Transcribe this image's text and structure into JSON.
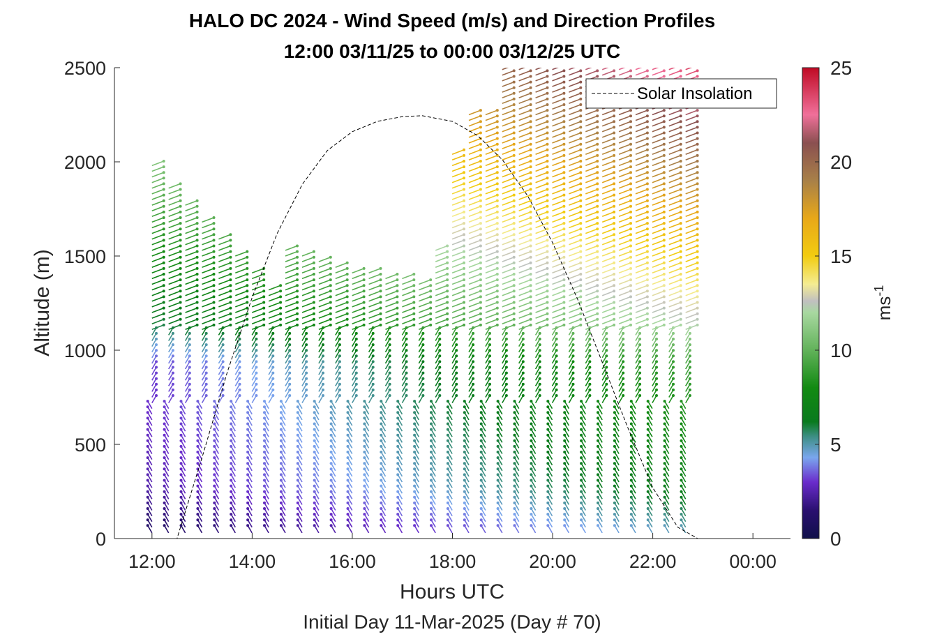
{
  "chart_data": {
    "type": "wind-barb-profile",
    "title": "HALO DC 2024 - Wind Speed (m/s) and Direction Profiles",
    "subtitle": "12:00 03/11/25 to 00:00 03/12/25  UTC",
    "xlabel": "Hours UTC",
    "xlabel2": "Initial Day 11-Mar-2025 (Day # 70)",
    "ylabel": "Altitude (m)",
    "xlim": [
      11.25,
      24.75
    ],
    "ylim": [
      0,
      2500
    ],
    "x_ticks": [
      12,
      14,
      16,
      18,
      20,
      22,
      24
    ],
    "x_tick_labels": [
      "12:00",
      "14:00",
      "16:00",
      "18:00",
      "20:00",
      "22:00",
      "00:00"
    ],
    "y_ticks": [
      0,
      500,
      1000,
      1500,
      2000,
      2500
    ],
    "y_tick_labels": [
      "0",
      "500",
      "1000",
      "1500",
      "2000",
      "2500"
    ],
    "colorbar": {
      "label": "ms",
      "label_exponent": "-1",
      "range": [
        0,
        25
      ],
      "ticks": [
        0,
        5,
        10,
        15,
        20,
        25
      ],
      "tick_labels": [
        "0",
        "5",
        "10",
        "15",
        "20",
        "25"
      ],
      "colors": [
        {
          "v": 0,
          "c": "#10104a"
        },
        {
          "v": 1.5,
          "c": "#2a1070"
        },
        {
          "v": 3,
          "c": "#6a2ccc"
        },
        {
          "v": 4.3,
          "c": "#7aa6ee"
        },
        {
          "v": 5.4,
          "c": "#3e8f86"
        },
        {
          "v": 6.2,
          "c": "#0a7a1e"
        },
        {
          "v": 8,
          "c": "#128a12"
        },
        {
          "v": 10,
          "c": "#62b25a"
        },
        {
          "v": 12,
          "c": "#a8d8a0"
        },
        {
          "v": 12.6,
          "c": "#c0c0c0"
        },
        {
          "v": 13.5,
          "c": "#f4ec92"
        },
        {
          "v": 15,
          "c": "#f2cc10"
        },
        {
          "v": 17,
          "c": "#e8a818"
        },
        {
          "v": 19,
          "c": "#a88048"
        },
        {
          "v": 21,
          "c": "#8a5050"
        },
        {
          "v": 22.5,
          "c": "#f0709a"
        },
        {
          "v": 25,
          "c": "#bf0a24"
        }
      ]
    },
    "legend": {
      "label": "Solar Insolation",
      "position": "top-right"
    },
    "solar_insolation_curve": {
      "x": [
        11.0,
        12.5,
        13.0,
        13.5,
        14.0,
        14.5,
        15.0,
        15.5,
        16.0,
        16.5,
        17.0,
        17.4,
        18.0,
        18.5,
        19.0,
        19.5,
        20.0,
        20.5,
        21.0,
        21.5,
        22.0,
        22.5,
        22.9,
        24.75
      ],
      "y": [
        0,
        0,
        430,
        880,
        1280,
        1620,
        1880,
        2060,
        2160,
        2215,
        2240,
        2245,
        2215,
        2140,
        2010,
        1820,
        1570,
        1270,
        930,
        590,
        270,
        60,
        0,
        0
      ]
    },
    "profiles": {
      "time_start": 12.0,
      "time_step": 0.333,
      "time_count": 33,
      "altitude_step": 30,
      "description_of_speed_field": "speed (m/s) = base(altitude) + trend(time)"
    }
  }
}
